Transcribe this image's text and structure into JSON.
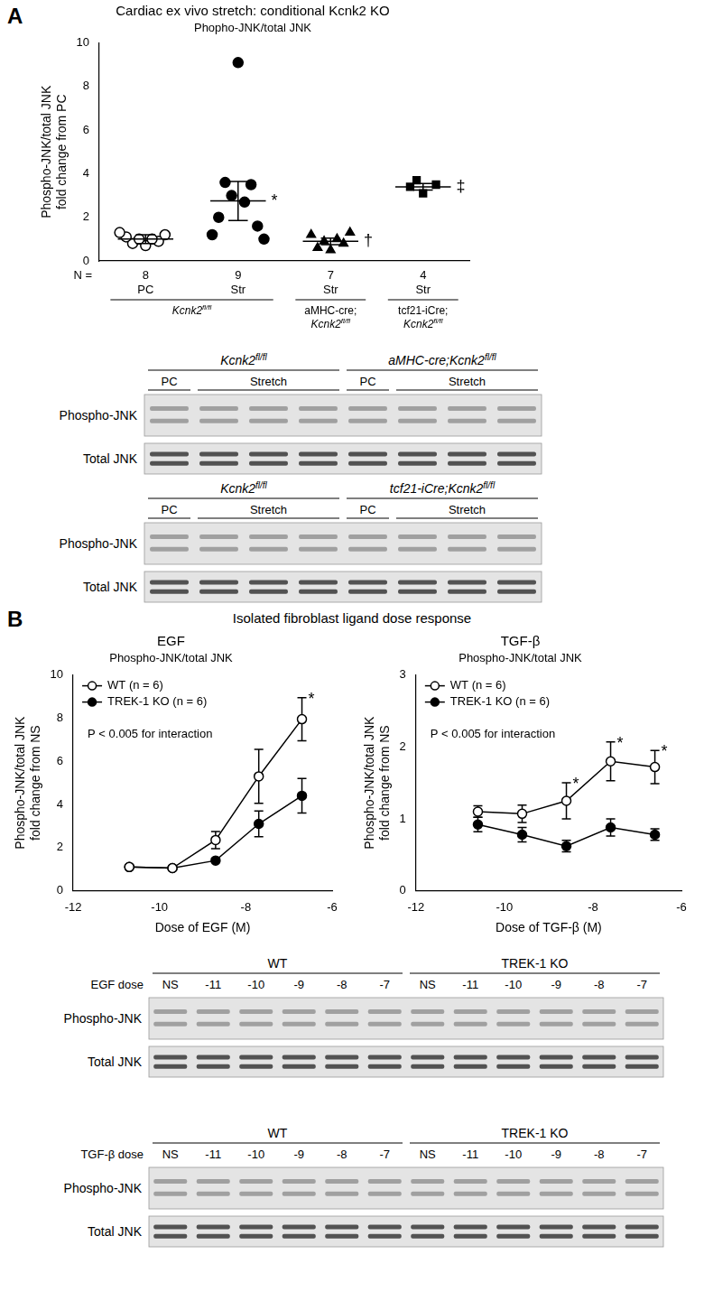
{
  "panel_labels": [
    "A",
    "B"
  ],
  "header_b": "Isolated fibroblast ligand dose response",
  "chart_data": [
    {
      "type": "scatter",
      "title": "Cardiac ex vivo stretch: conditional Kcnk2 KO",
      "subtitle": "Phopho-JNK/total JNK",
      "y_label": [
        "Phospho-JNK/total JNK",
        "fold change from PC"
      ],
      "categories": [
        "PC",
        "Str",
        "Str",
        "Str"
      ],
      "n_label": "N =",
      "n": [
        8,
        9,
        7,
        4
      ],
      "group_labels": [
        [
          "Kcnk2fl/fl"
        ],
        [
          "Kcnk2fl/fl"
        ],
        [
          "aMHC-cre;",
          "Kcnk2fl/fl"
        ],
        [
          "tcf21-iCre;",
          "Kcnk2fl/fl"
        ]
      ],
      "markers": [
        "open_circle",
        "circle",
        "triangle",
        "square"
      ],
      "points": [
        [
          0.7,
          0.8,
          0.9,
          1.0,
          1.0,
          1.1,
          1.2,
          1.3
        ],
        [
          9.1,
          3.6,
          3.5,
          3.0,
          2.7,
          2.0,
          1.6,
          1.2,
          1.0
        ],
        [
          0.5,
          0.6,
          0.8,
          0.9,
          1.0,
          1.2,
          1.3
        ],
        [
          3.1,
          3.4,
          3.5,
          3.7
        ]
      ],
      "means": [
        1.0,
        2.75,
        0.9,
        3.4
      ],
      "errors": [
        0.2,
        0.9,
        0.15,
        0.15
      ],
      "marks": [
        null,
        "*",
        "†",
        "‡"
      ],
      "color": "#000000",
      "ylim": [
        0,
        10
      ],
      "yticks": [
        0,
        2,
        4,
        6,
        8,
        10
      ],
      "grid": false
    },
    {
      "type": "line",
      "title": "EGF",
      "subtitle": "Phospho-JNK/total JNK",
      "x_label": "Dose of EGF (M)",
      "y_label": [
        "Phospho-JNK/total JNK",
        "fold change from NS"
      ],
      "annotation": "P < 0.005 for interaction",
      "x": [
        -10.7,
        -9.7,
        -8.7,
        -7.7,
        -6.7
      ],
      "series": [
        {
          "name": "WT (n = 6)",
          "color": "#000000",
          "marker": "open_circle",
          "line_style": "solid",
          "values": [
            1.1,
            1.05,
            2.35,
            5.3,
            7.95
          ],
          "errors": [
            0.1,
            0.1,
            0.4,
            1.25,
            1.0
          ],
          "marks": [
            null,
            null,
            null,
            null,
            "*"
          ]
        },
        {
          "name": "TREK-1 KO (n = 6)",
          "color": "#000000",
          "marker": "circle",
          "line_style": "solid",
          "values": [
            1.1,
            1.05,
            1.4,
            3.1,
            4.4
          ],
          "errors": [
            0.05,
            0.05,
            0.1,
            0.6,
            0.8
          ],
          "marks": [
            null,
            null,
            null,
            null,
            null
          ]
        }
      ],
      "xlim": [
        -12,
        -6
      ],
      "xticks": [
        -12,
        -10,
        -8,
        -6
      ],
      "ylim": [
        0,
        10
      ],
      "yticks": [
        0,
        2,
        4,
        6,
        8,
        10
      ],
      "legend": "top-left",
      "grid": false
    },
    {
      "type": "line",
      "title": "TGF-β",
      "subtitle": "Phospho-JNK/total JNK",
      "x_label": "Dose of TGF-β (M)",
      "y_label": [
        "Phospho-JNK/total JNK",
        "fold change from NS"
      ],
      "annotation": "P < 0.005 for interaction",
      "x": [
        -10.6,
        -9.6,
        -8.6,
        -7.6,
        -6.6
      ],
      "series": [
        {
          "name": "WT (n = 6)",
          "color": "#000000",
          "marker": "open_circle",
          "line_style": "solid",
          "values": [
            1.1,
            1.07,
            1.25,
            1.8,
            1.72
          ],
          "errors": [
            0.08,
            0.12,
            0.25,
            0.27,
            0.23
          ],
          "marks": [
            null,
            null,
            "*",
            "*",
            "*"
          ]
        },
        {
          "name": "TREK-1 KO (n = 6)",
          "color": "#000000",
          "marker": "circle",
          "line_style": "solid",
          "values": [
            0.92,
            0.78,
            0.62,
            0.88,
            0.78
          ],
          "errors": [
            0.1,
            0.1,
            0.08,
            0.12,
            0.08
          ],
          "marks": [
            null,
            null,
            null,
            null,
            null
          ]
        }
      ],
      "xlim": [
        -12,
        -6
      ],
      "xticks": [
        -12,
        -10,
        -8,
        -6
      ],
      "ylim": [
        0,
        3
      ],
      "yticks": [
        0,
        1,
        2,
        3
      ],
      "legend": "top-left",
      "grid": false
    }
  ],
  "blots_a": [
    {
      "groups": [
        "Kcnk2fl/fl",
        "aMHC-cre;Kcnk2fl/fl"
      ],
      "lanes": [
        [
          "PC",
          "Stretch"
        ],
        [
          "PC",
          "Stretch"
        ]
      ],
      "rows": [
        "Phospho-JNK",
        "Total JNK"
      ]
    },
    {
      "groups": [
        "Kcnk2fl/fl",
        "tcf21-iCre;Kcnk2fl/fl"
      ],
      "lanes": [
        [
          "PC",
          "Stretch"
        ],
        [
          "PC",
          "Stretch"
        ]
      ],
      "rows": [
        "Phospho-JNK",
        "Total JNK"
      ]
    }
  ],
  "blots_b": [
    {
      "dose_label": "EGF dose",
      "groups": [
        "WT",
        "TREK-1 KO"
      ],
      "lanes": [
        [
          "NS",
          "-11",
          "-10",
          "-9",
          "-8",
          "-7"
        ],
        [
          "NS",
          "-11",
          "-10",
          "-9",
          "-8",
          "-7"
        ]
      ],
      "rows": [
        "Phospho-JNK",
        "Total JNK"
      ]
    },
    {
      "dose_label": "TGF-β dose",
      "groups": [
        "WT",
        "TREK-1 KO"
      ],
      "lanes": [
        [
          "NS",
          "-11",
          "-10",
          "-9",
          "-8",
          "-7"
        ],
        [
          "NS",
          "-11",
          "-10",
          "-9",
          "-8",
          "-7"
        ]
      ],
      "rows": [
        "Phospho-JNK",
        "Total JNK"
      ]
    }
  ]
}
